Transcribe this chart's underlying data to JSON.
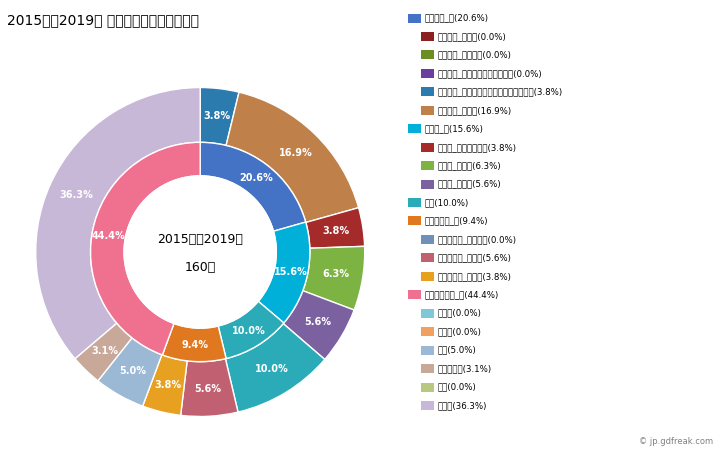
{
  "title": "2015年～2019年 中川村の男性の死因構成",
  "center_text_line1": "2015年～2019年",
  "center_text_line2": "160人",
  "inner_values": [
    20.6,
    15.6,
    10.0,
    9.4,
    44.4
  ],
  "inner_colors": [
    "#4472C4",
    "#00B0D8",
    "#2BABB8",
    "#E07820",
    "#F07090"
  ],
  "inner_labels": [
    "20.6%",
    "15.6%",
    "10.0%",
    "9.4%",
    "44.4%"
  ],
  "outer_values": [
    3.8,
    16.9,
    3.8,
    6.3,
    5.6,
    10.0,
    5.6,
    3.8,
    5.0,
    3.1,
    36.3
  ],
  "outer_colors": [
    "#2B7BAF",
    "#C0804A",
    "#A52A2A",
    "#7CB342",
    "#7B61A0",
    "#2BABB8",
    "#C06070",
    "#E8A020",
    "#9BB8D4",
    "#C8A898",
    "#C8B8D8"
  ],
  "outer_labels": [
    "3.8%",
    "16.9%",
    "3.8%",
    "6.3%",
    "5.6%",
    "10.0%",
    "5.6%",
    "3.8%",
    "5.0%",
    "3.1%",
    "36.3%"
  ],
  "legend_entries": [
    {
      "label": "悪性腫瘍_計(20.6%)",
      "color": "#4472C4",
      "indent": false
    },
    {
      "label": "悪性腫瘍_胃がん(0.0%)",
      "color": "#8B2020",
      "indent": true
    },
    {
      "label": "悪性腫瘍_大腸がん(0.0%)",
      "color": "#6B8E23",
      "indent": true
    },
    {
      "label": "悪性腫瘍_肝がん・肝内胆管がん(0.0%)",
      "color": "#6B3FA0",
      "indent": true
    },
    {
      "label": "悪性腫瘍_気管がん・気管支がん・肺がん(3.8%)",
      "color": "#2B7BAF",
      "indent": true
    },
    {
      "label": "悪性腫瘍_その他(16.9%)",
      "color": "#C0804A",
      "indent": true
    },
    {
      "label": "心疾患_計(15.6%)",
      "color": "#00B0D8",
      "indent": false
    },
    {
      "label": "心疾患_急性心筋梗塞(3.8%)",
      "color": "#A52A2A",
      "indent": true
    },
    {
      "label": "心疾患_心不全(6.3%)",
      "color": "#7CB342",
      "indent": true
    },
    {
      "label": "心疾患_その他(5.6%)",
      "color": "#7B61A0",
      "indent": true
    },
    {
      "label": "肺炎(10.0%)",
      "color": "#2BABB8",
      "indent": false
    },
    {
      "label": "脳血管疾患_計(9.4%)",
      "color": "#E07820",
      "indent": false
    },
    {
      "label": "脳血管疾患_脳内出血(0.0%)",
      "color": "#7090B8",
      "indent": true
    },
    {
      "label": "脳血管疾患_脳梗塞(5.6%)",
      "color": "#C06070",
      "indent": true
    },
    {
      "label": "脳血管疾患_その他(3.8%)",
      "color": "#E8A020",
      "indent": true
    },
    {
      "label": "その他の死因_計(44.4%)",
      "color": "#F07090",
      "indent": false
    },
    {
      "label": "肝疾患(0.0%)",
      "color": "#80C8D8",
      "indent": true
    },
    {
      "label": "腎不全(0.0%)",
      "color": "#F0A060",
      "indent": true
    },
    {
      "label": "老衰(5.0%)",
      "color": "#9BB8D4",
      "indent": true
    },
    {
      "label": "不慮の事故(3.1%)",
      "color": "#C8A898",
      "indent": true
    },
    {
      "label": "自殺(0.0%)",
      "color": "#B8C880",
      "indent": true
    },
    {
      "label": "その他(36.3%)",
      "color": "#C8B8D8",
      "indent": true
    }
  ],
  "background_color": "#FFFFFF"
}
